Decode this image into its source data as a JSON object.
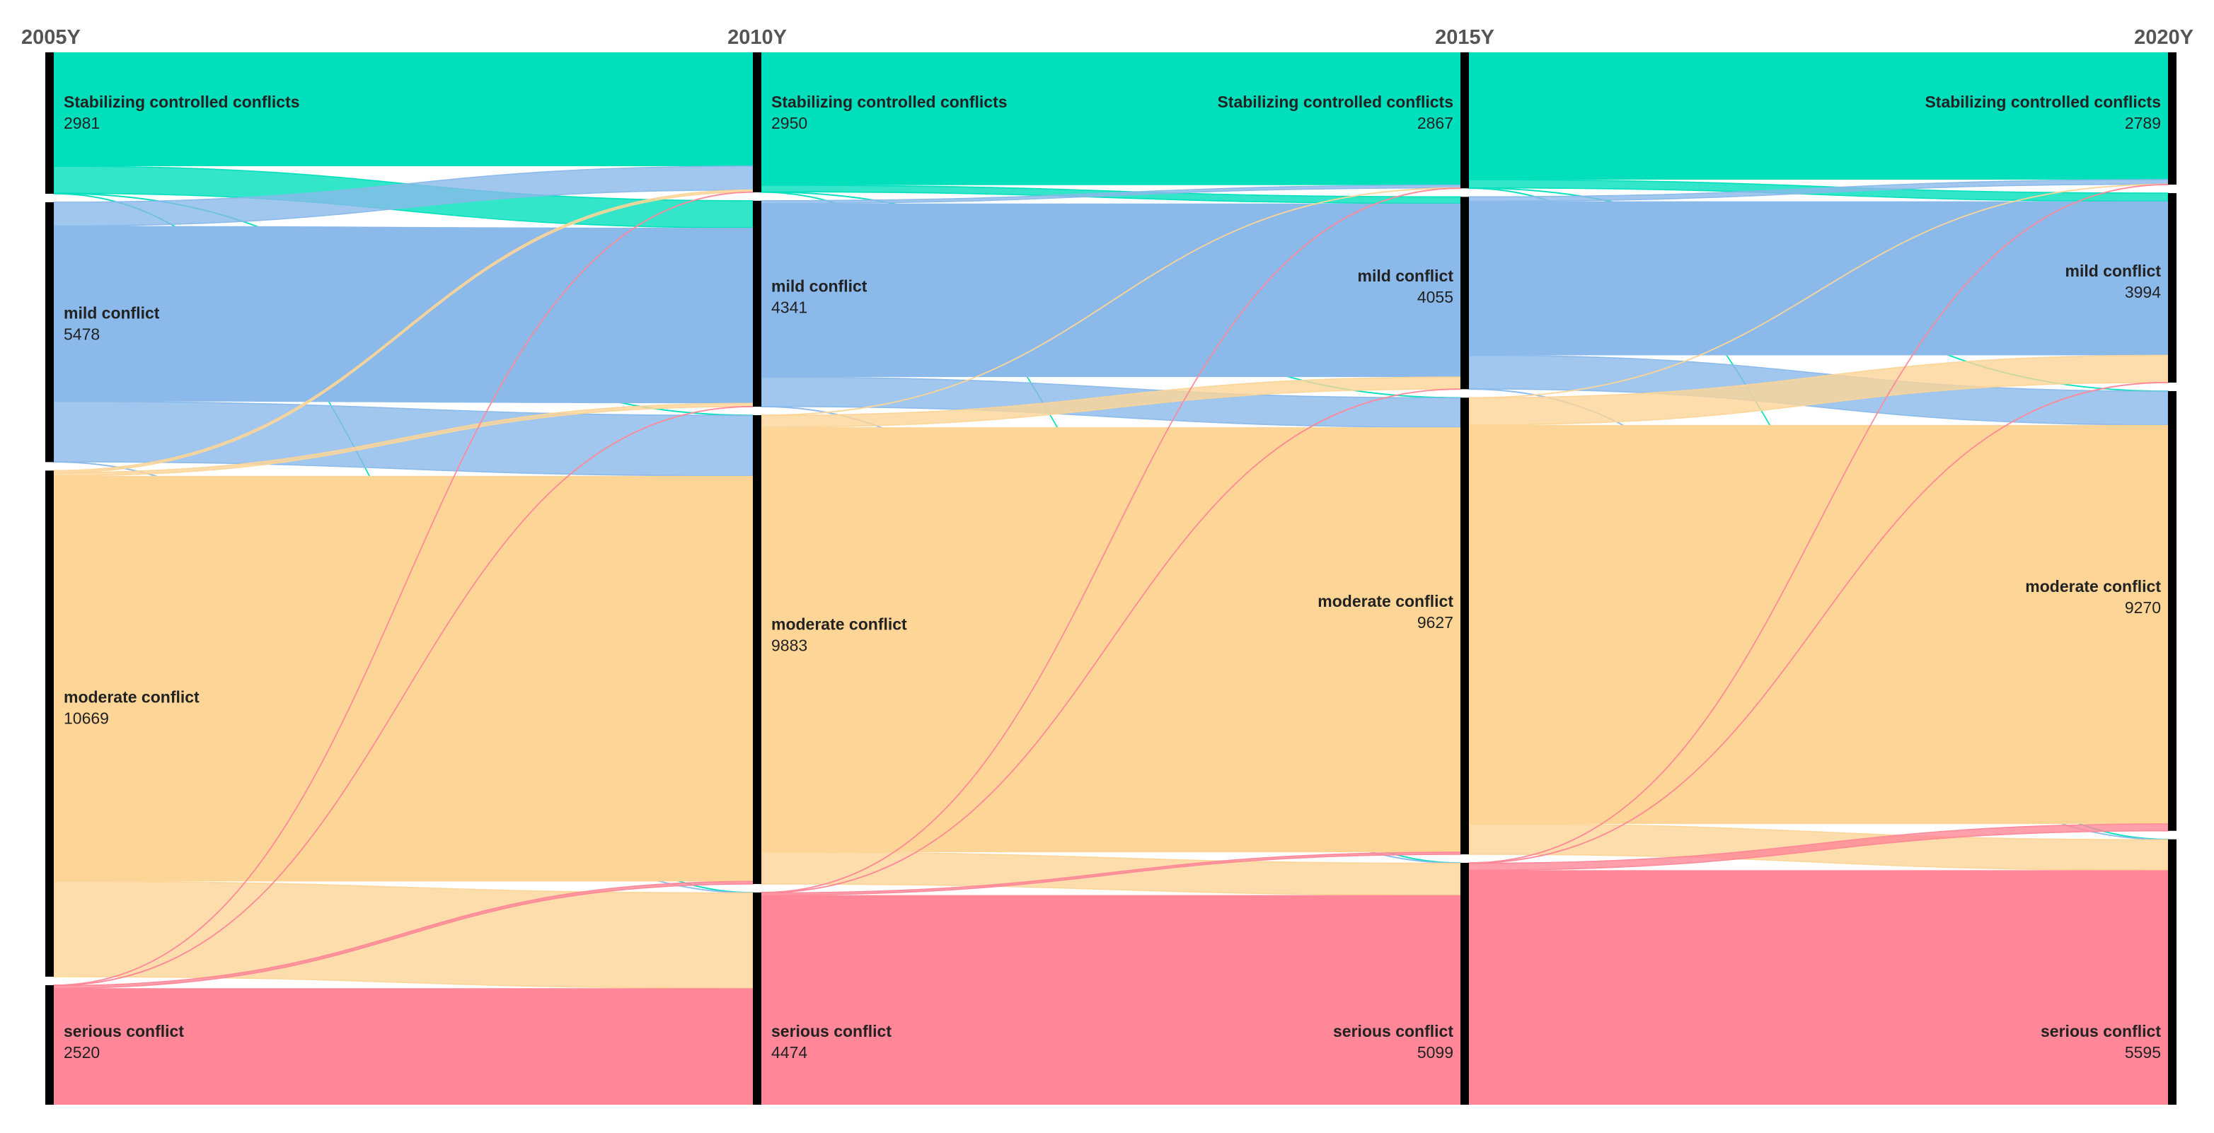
{
  "chart_data": {
    "type": "sankey",
    "title": "",
    "years": [
      "2005Y",
      "2010Y",
      "2015Y",
      "2020Y"
    ],
    "categories": [
      {
        "key": "stable",
        "label": "Stabilizing controlled conflicts",
        "color": "#00dfbc"
      },
      {
        "key": "mild",
        "label": "mild conflict",
        "color": "#8ab9ea"
      },
      {
        "key": "moderate",
        "label": "moderate conflict",
        "color": "#fcd597"
      },
      {
        "key": "serious",
        "label": "serious conflict",
        "color": "#ff8797"
      }
    ],
    "nodes": {
      "2005Y": {
        "stable": 2981,
        "mild": 5478,
        "moderate": 10669,
        "serious": 2520
      },
      "2010Y_in": {
        "stable": 2950,
        "mild": 4341,
        "moderate": 9883,
        "serious": 4474
      },
      "2010Y_out": {
        "stable": 2950,
        "mild": 4341,
        "moderate": 9883,
        "serious": 4474
      },
      "2015Y_in": {
        "stable": 2867,
        "mild": 4055,
        "moderate": 9627,
        "serious": 5099
      },
      "2015Y_out": {
        "stable": 2867,
        "mild": 4055,
        "moderate": 9627,
        "serious": 5099
      },
      "2020Y": {
        "stable": 2789,
        "mild": 3994,
        "moderate": 9270,
        "serious": 5595
      }
    },
    "flows": [
      {
        "from": "2005Y",
        "to": "2010Y",
        "links": [
          {
            "source": "stable",
            "target": "stable",
            "value": 2400
          },
          {
            "source": "stable",
            "target": "mild",
            "value": 570
          },
          {
            "source": "stable",
            "target": "moderate",
            "value": 6
          },
          {
            "source": "stable",
            "target": "serious",
            "value": 5
          },
          {
            "source": "mild",
            "target": "stable",
            "value": 500
          },
          {
            "source": "mild",
            "target": "mild",
            "value": 3700
          },
          {
            "source": "mild",
            "target": "moderate",
            "value": 1273
          },
          {
            "source": "mild",
            "target": "serious",
            "value": 5
          },
          {
            "source": "moderate",
            "target": "stable",
            "value": 45
          },
          {
            "source": "moderate",
            "target": "mild",
            "value": 66
          },
          {
            "source": "moderate",
            "target": "moderate",
            "value": 8550
          },
          {
            "source": "moderate",
            "target": "serious",
            "value": 2008
          },
          {
            "source": "serious",
            "target": "stable",
            "value": 5
          },
          {
            "source": "serious",
            "target": "mild",
            "value": 5
          },
          {
            "source": "serious",
            "target": "moderate",
            "value": 54
          },
          {
            "source": "serious",
            "target": "serious",
            "value": 2456
          }
        ]
      },
      {
        "from": "2010Y",
        "to": "2015Y",
        "links": [
          {
            "source": "stable",
            "target": "stable",
            "value": 2800
          },
          {
            "source": "stable",
            "target": "mild",
            "value": 140
          },
          {
            "source": "stable",
            "target": "moderate",
            "value": 5
          },
          {
            "source": "stable",
            "target": "serious",
            "value": 5
          },
          {
            "source": "mild",
            "target": "stable",
            "value": 57
          },
          {
            "source": "mild",
            "target": "mild",
            "value": 3660
          },
          {
            "source": "mild",
            "target": "moderate",
            "value": 619
          },
          {
            "source": "mild",
            "target": "serious",
            "value": 5
          },
          {
            "source": "moderate",
            "target": "stable",
            "value": 5
          },
          {
            "source": "moderate",
            "target": "mild",
            "value": 250
          },
          {
            "source": "moderate",
            "target": "moderate",
            "value": 8958
          },
          {
            "source": "moderate",
            "target": "serious",
            "value": 670
          },
          {
            "source": "serious",
            "target": "stable",
            "value": 5
          },
          {
            "source": "serious",
            "target": "mild",
            "value": 5
          },
          {
            "source": "serious",
            "target": "moderate",
            "value": 45
          },
          {
            "source": "serious",
            "target": "serious",
            "value": 4419
          }
        ]
      },
      {
        "from": "2015Y",
        "to": "2020Y",
        "links": [
          {
            "source": "stable",
            "target": "stable",
            "value": 2685
          },
          {
            "source": "stable",
            "target": "mild",
            "value": 172
          },
          {
            "source": "stable",
            "target": "moderate",
            "value": 5
          },
          {
            "source": "stable",
            "target": "serious",
            "value": 5
          },
          {
            "source": "mild",
            "target": "stable",
            "value": 94
          },
          {
            "source": "mild",
            "target": "mild",
            "value": 3247
          },
          {
            "source": "mild",
            "target": "moderate",
            "value": 709
          },
          {
            "source": "mild",
            "target": "serious",
            "value": 5
          },
          {
            "source": "moderate",
            "target": "stable",
            "value": 5
          },
          {
            "source": "moderate",
            "target": "mild",
            "value": 570
          },
          {
            "source": "moderate",
            "target": "moderate",
            "value": 8412
          },
          {
            "source": "moderate",
            "target": "serious",
            "value": 640
          },
          {
            "source": "serious",
            "target": "stable",
            "value": 5
          },
          {
            "source": "serious",
            "target": "mild",
            "value": 5
          },
          {
            "source": "serious",
            "target": "moderate",
            "value": 144
          },
          {
            "source": "serious",
            "target": "serious",
            "value": 4945
          }
        ]
      }
    ]
  }
}
